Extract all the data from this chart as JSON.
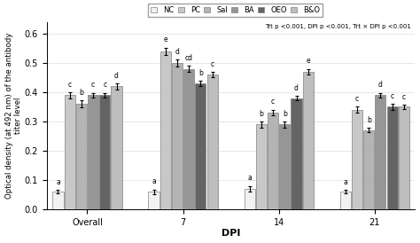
{
  "groups": [
    "Overall",
    "7",
    "14",
    "21"
  ],
  "series_labels": [
    "NC",
    "PC",
    "Sal",
    "BA",
    "OEO",
    "B&O"
  ],
  "bar_colors": [
    "#f2f2f2",
    "#c8c8c8",
    "#b4b4b4",
    "#969696",
    "#646464",
    "#bebebe"
  ],
  "bar_edge_colors": [
    "#808080",
    "#808080",
    "#808080",
    "#808080",
    "#808080",
    "#808080"
  ],
  "values": [
    [
      0.06,
      0.39,
      0.36,
      0.39,
      0.39,
      0.42
    ],
    [
      0.06,
      0.54,
      0.5,
      0.48,
      0.43,
      0.46
    ],
    [
      0.07,
      0.29,
      0.33,
      0.29,
      0.38,
      0.47
    ],
    [
      0.06,
      0.34,
      0.27,
      0.39,
      0.35,
      0.35
    ]
  ],
  "errors": [
    [
      0.006,
      0.01,
      0.012,
      0.008,
      0.008,
      0.01
    ],
    [
      0.008,
      0.012,
      0.012,
      0.01,
      0.008,
      0.01
    ],
    [
      0.01,
      0.01,
      0.01,
      0.01,
      0.008,
      0.01
    ],
    [
      0.007,
      0.01,
      0.008,
      0.008,
      0.01,
      0.008
    ]
  ],
  "letter_labels": [
    [
      "a",
      "c",
      "b",
      "c",
      "c",
      "d"
    ],
    [
      "a",
      "e",
      "d",
      "cd",
      "b",
      "c"
    ],
    [
      "a",
      "b",
      "c",
      "b",
      "d",
      "e"
    ],
    [
      "a",
      "c",
      "b",
      "d",
      "c",
      "c"
    ]
  ],
  "ylabel": "Optical density (at 492 nm) of the antibody\ntiter level",
  "xlabel": "DPI",
  "ylim": [
    0,
    0.64
  ],
  "yticks": [
    0.0,
    0.1,
    0.2,
    0.3,
    0.4,
    0.5,
    0.6
  ],
  "stats_text": "Trt p <0.001, DPI p <0.001, Trt × DPI p <0.001",
  "background_color": "#ffffff"
}
